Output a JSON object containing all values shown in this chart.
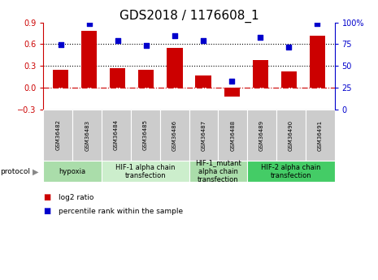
{
  "title": "GDS2018 / 1176608_1",
  "samples": [
    "GSM36482",
    "GSM36483",
    "GSM36484",
    "GSM36485",
    "GSM36486",
    "GSM36487",
    "GSM36488",
    "GSM36489",
    "GSM36490",
    "GSM36491"
  ],
  "log2_ratio": [
    0.24,
    0.78,
    0.27,
    0.25,
    0.55,
    0.17,
    -0.13,
    0.38,
    0.22,
    0.72
  ],
  "percentile_rank": [
    74,
    99,
    79,
    73,
    85,
    79,
    32,
    83,
    72,
    99
  ],
  "bar_color": "#cc0000",
  "dot_color": "#0000cc",
  "ylim_left": [
    -0.3,
    0.9
  ],
  "ylim_right": [
    0,
    100
  ],
  "yticks_left": [
    -0.3,
    0.0,
    0.3,
    0.6,
    0.9
  ],
  "yticks_right": [
    0,
    25,
    50,
    75,
    100
  ],
  "hlines_y": [
    0.0,
    0.3,
    0.6
  ],
  "hline_styles": [
    "dashdot",
    "dotted",
    "dotted"
  ],
  "hline_colors": [
    "#cc0000",
    "#000000",
    "#000000"
  ],
  "protocols": [
    {
      "label": "hypoxia",
      "start": 0,
      "end": 2,
      "color": "#aaddaa"
    },
    {
      "label": "HIF-1 alpha chain\ntransfection",
      "start": 2,
      "end": 5,
      "color": "#cceecc"
    },
    {
      "label": "HIF-1_mutant\nalpha chain\ntransfection",
      "start": 5,
      "end": 7,
      "color": "#aaddaa"
    },
    {
      "label": "HIF-2 alpha chain\ntransfection",
      "start": 7,
      "end": 10,
      "color": "#44cc66"
    }
  ],
  "protocol_label": "protocol",
  "legend_labels": [
    "log2 ratio",
    "percentile rank within the sample"
  ],
  "title_fontsize": 11,
  "tick_fontsize": 7,
  "bar_width": 0.55,
  "sample_label_fontsize": 5,
  "protocol_fontsize": 6
}
